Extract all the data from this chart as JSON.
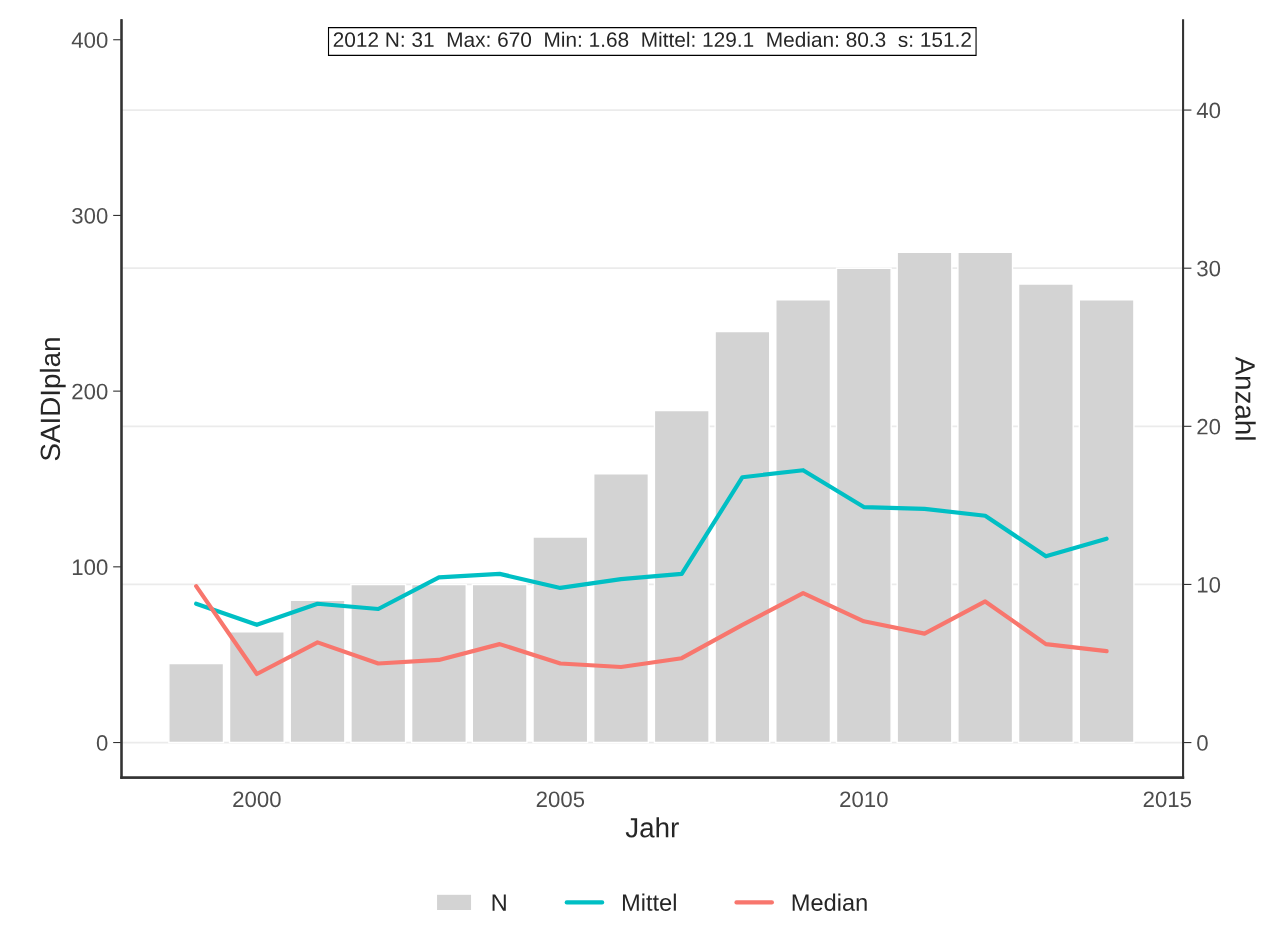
{
  "chart_data": {
    "type": "line",
    "xlabel": "Jahr",
    "ylabel": "SAIDIplan",
    "y2label": "Anzahl",
    "x": [
      1999,
      2000,
      2001,
      2002,
      2003,
      2004,
      2005,
      2006,
      2007,
      2008,
      2009,
      2010,
      2011,
      2012,
      2013,
      2014
    ],
    "series": [
      {
        "name": "N",
        "type": "bar",
        "axis": "y2",
        "color": "#d3d3d3",
        "values": [
          5,
          7,
          9,
          10,
          10,
          10,
          13,
          17,
          21,
          26,
          28,
          30,
          31,
          31,
          29,
          28
        ]
      },
      {
        "name": "Mittel",
        "color": "#00bfc4",
        "values": [
          79,
          67,
          79,
          76,
          94,
          96,
          88,
          93,
          96,
          151,
          155,
          134,
          133,
          129.1,
          106,
          116
        ]
      },
      {
        "name": "Median",
        "color": "#f8766d",
        "values": [
          89,
          39,
          57,
          45,
          47,
          56,
          45,
          43,
          48,
          67,
          85,
          69,
          62,
          80.3,
          56,
          52
        ]
      }
    ],
    "xlim": [
      1997.77,
      2015.26
    ],
    "xticks": [
      2000,
      2005,
      2010,
      2015
    ],
    "ylim": [
      -20,
      411
    ],
    "yticks": [
      0,
      100,
      200,
      300,
      400
    ],
    "y2lim": [
      -2.22,
      45.67
    ],
    "y2ticks": [
      0,
      10,
      20,
      30,
      40
    ],
    "grid": true,
    "legend": "bottom",
    "annotations": [
      "2012 N: 31  Max: 670  Min: 1.68  Mittel: 129.1  Median: 80.3  s: 151.2"
    ]
  }
}
